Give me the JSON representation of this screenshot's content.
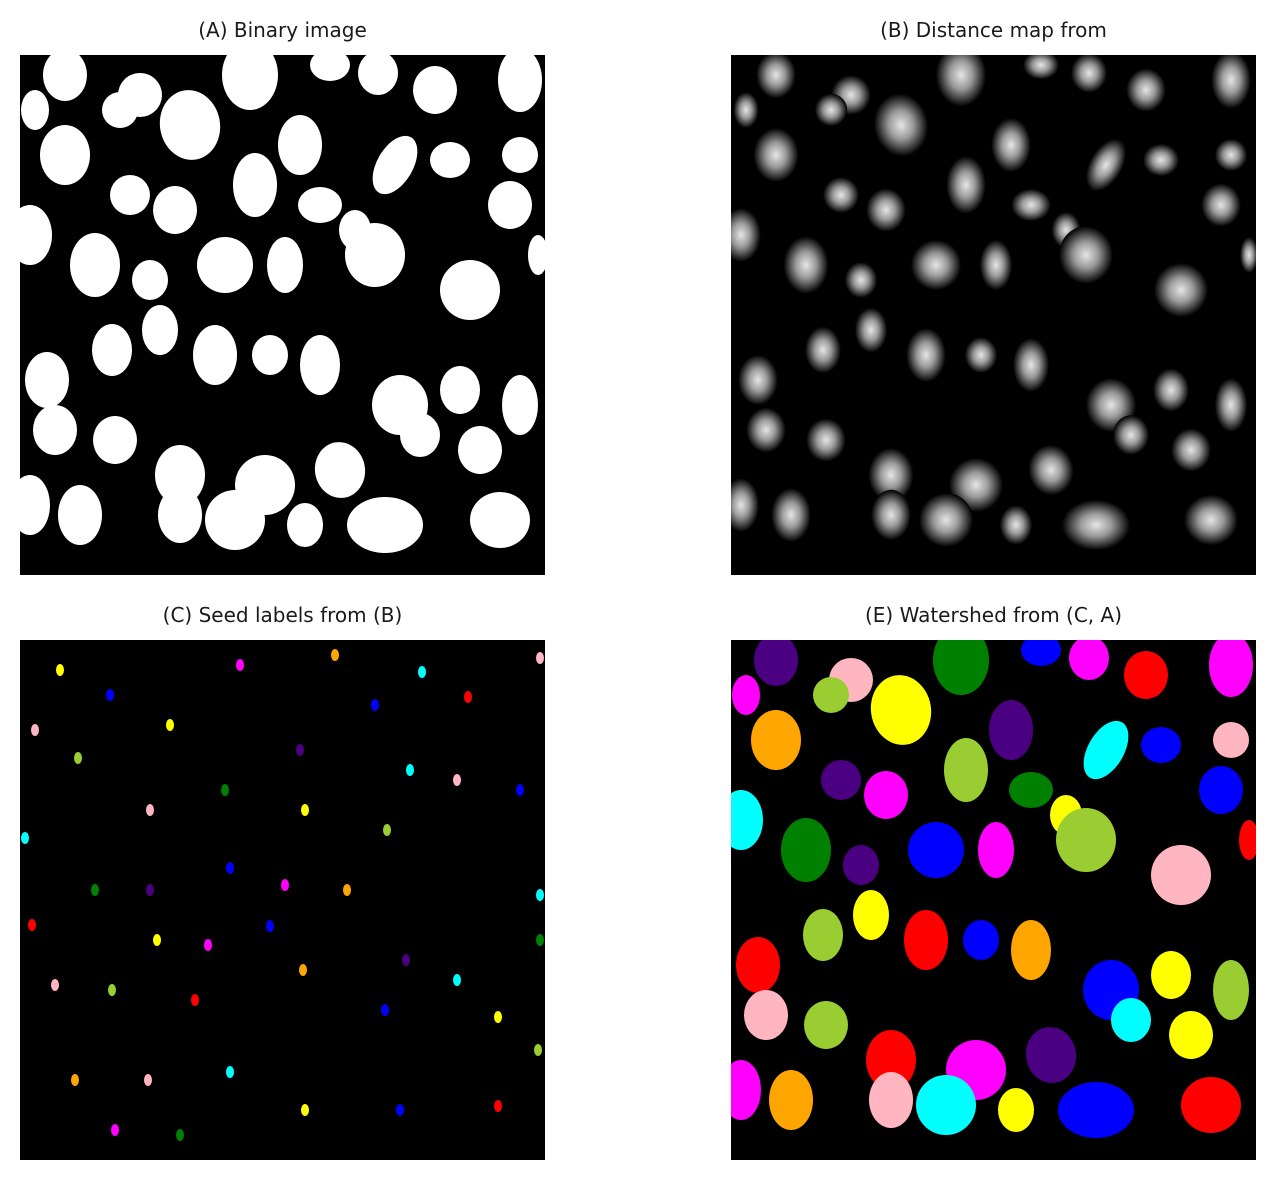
{
  "panels": {
    "a": {
      "title": "(A) Binary image"
    },
    "b": {
      "title": "(B) Distance map from"
    },
    "c": {
      "title": "(C) Seed labels from (B)"
    },
    "e": {
      "title": "(E) Watershed from (C, A)"
    }
  },
  "colors": {
    "background": "#000000",
    "foreground": "#ffffff",
    "palette": [
      "#ff0000",
      "#008000",
      "#0000ff",
      "#ffff00",
      "#ff00ff",
      "#00ffff",
      "#9acd32",
      "#ffa500",
      "#4b0082",
      "#ffb6c1"
    ]
  }
}
